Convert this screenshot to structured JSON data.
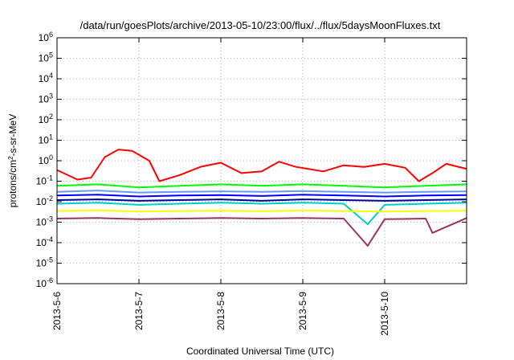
{
  "chart_data": {
    "type": "line",
    "title": "/data/run/goesPlots/archive/2013-05-10/23:00/flux/../flux/5daysMoonFluxes.txt",
    "xlabel": "Coordinated Universal Time (UTC)",
    "ylabel": "protons/cm2-s-sr-MeV",
    "ylabel_base": "protons/cm",
    "ylabel_sup": "2",
    "ylabel_rest": "-s-sr-MeV",
    "yscale": "log",
    "ylim": [
      1e-06,
      1000000.0
    ],
    "xlim": [
      "2013-05-06T00:00",
      "2013-05-11T00:00"
    ],
    "grid": true,
    "legend": "none",
    "x_ticks": [
      "2013-5-6",
      "2013-5-7",
      "2013-5-8",
      "2013-5-9",
      "2013-5-10"
    ],
    "y_tick_exponents": [
      -6,
      -5,
      -4,
      -3,
      -2,
      -1,
      0,
      1,
      2,
      3,
      4,
      5,
      6
    ],
    "series": [
      {
        "color": "#ff0000",
        "x": [
          "2013-05-06T00:00",
          "2013-05-06T06:00",
          "2013-05-06T10:00",
          "2013-05-06T14:00",
          "2013-05-06T18:00",
          "2013-05-06T22:00",
          "2013-05-07T03:00",
          "2013-05-07T06:00",
          "2013-05-07T12:00",
          "2013-05-07T18:00",
          "2013-05-08T00:00",
          "2013-05-08T06:00",
          "2013-05-08T12:00",
          "2013-05-08T17:00",
          "2013-05-08T22:00",
          "2013-05-09T06:00",
          "2013-05-09T12:00",
          "2013-05-09T18:00",
          "2013-05-10T00:00",
          "2013-05-10T06:00",
          "2013-05-10T10:00",
          "2013-05-10T14:00",
          "2013-05-10T18:00",
          "2013-05-11T00:00"
        ],
        "y": [
          0.35,
          0.12,
          0.15,
          1.5,
          3.5,
          3.0,
          1.0,
          0.1,
          0.2,
          0.5,
          0.8,
          0.25,
          0.3,
          0.9,
          0.5,
          0.3,
          0.6,
          0.5,
          0.7,
          0.45,
          0.1,
          0.25,
          0.7,
          0.4
        ]
      },
      {
        "color": "#00ff00",
        "x": [
          "2013-05-06T00:00",
          "2013-05-06T12:00",
          "2013-05-07T00:00",
          "2013-05-07T12:00",
          "2013-05-08T00:00",
          "2013-05-08T12:00",
          "2013-05-09T00:00",
          "2013-05-09T12:00",
          "2013-05-10T00:00",
          "2013-05-10T12:00",
          "2013-05-11T00:00"
        ],
        "y": [
          0.06,
          0.07,
          0.05,
          0.06,
          0.07,
          0.06,
          0.07,
          0.06,
          0.05,
          0.06,
          0.07
        ]
      },
      {
        "color": "#6699ff",
        "x": [
          "2013-05-06T00:00",
          "2013-05-06T12:00",
          "2013-05-07T00:00",
          "2013-05-07T12:00",
          "2013-05-08T00:00",
          "2013-05-08T12:00",
          "2013-05-09T00:00",
          "2013-05-09T12:00",
          "2013-05-10T00:00",
          "2013-05-10T12:00",
          "2013-05-11T00:00"
        ],
        "y": [
          0.03,
          0.035,
          0.028,
          0.03,
          0.032,
          0.03,
          0.033,
          0.03,
          0.028,
          0.03,
          0.032
        ]
      },
      {
        "color": "#0000ff",
        "x": [
          "2013-05-06T00:00",
          "2013-05-06T12:00",
          "2013-05-07T00:00",
          "2013-05-07T12:00",
          "2013-05-08T00:00",
          "2013-05-08T12:00",
          "2013-05-09T00:00",
          "2013-05-09T12:00",
          "2013-05-10T00:00",
          "2013-05-10T12:00",
          "2013-05-11T00:00"
        ],
        "y": [
          0.02,
          0.022,
          0.018,
          0.02,
          0.021,
          0.019,
          0.022,
          0.02,
          0.018,
          0.02,
          0.021
        ]
      },
      {
        "color": "#000099",
        "x": [
          "2013-05-06T00:00",
          "2013-05-06T12:00",
          "2013-05-07T00:00",
          "2013-05-07T12:00",
          "2013-05-08T00:00",
          "2013-05-08T12:00",
          "2013-05-09T00:00",
          "2013-05-09T12:00",
          "2013-05-10T00:00",
          "2013-05-10T12:00",
          "2013-05-11T00:00"
        ],
        "y": [
          0.012,
          0.013,
          0.011,
          0.012,
          0.013,
          0.011,
          0.013,
          0.012,
          0.011,
          0.012,
          0.013
        ]
      },
      {
        "color": "#00cccc",
        "x": [
          "2013-05-06T00:00",
          "2013-05-06T12:00",
          "2013-05-07T00:00",
          "2013-05-07T12:00",
          "2013-05-08T00:00",
          "2013-05-08T12:00",
          "2013-05-09T00:00",
          "2013-05-09T12:00",
          "2013-05-09T19:00",
          "2013-05-10T00:00",
          "2013-05-10T12:00",
          "2013-05-11T00:00"
        ],
        "y": [
          0.008,
          0.009,
          0.007,
          0.008,
          0.009,
          0.008,
          0.009,
          0.008,
          0.0008,
          0.007,
          0.008,
          0.009
        ]
      },
      {
        "color": "#ffff00",
        "x": [
          "2013-05-06T00:00",
          "2013-05-06T12:00",
          "2013-05-07T00:00",
          "2013-05-07T12:00",
          "2013-05-08T00:00",
          "2013-05-08T12:00",
          "2013-05-09T00:00",
          "2013-05-09T12:00",
          "2013-05-10T00:00",
          "2013-05-10T12:00",
          "2013-05-11T00:00"
        ],
        "y": [
          0.0035,
          0.0038,
          0.0033,
          0.0035,
          0.0036,
          0.0034,
          0.0037,
          0.0035,
          0.0033,
          0.0035,
          0.0036
        ]
      },
      {
        "color": "#993366",
        "x": [
          "2013-05-06T00:00",
          "2013-05-06T12:00",
          "2013-05-07T00:00",
          "2013-05-07T12:00",
          "2013-05-08T00:00",
          "2013-05-08T12:00",
          "2013-05-09T00:00",
          "2013-05-09T12:00",
          "2013-05-09T19:00",
          "2013-05-10T00:00",
          "2013-05-10T12:00",
          "2013-05-10T14:00",
          "2013-05-11T00:00"
        ],
        "y": [
          0.0015,
          0.0016,
          0.0014,
          0.0015,
          0.0016,
          0.0015,
          0.0016,
          0.0015,
          7e-05,
          0.0014,
          0.0015,
          0.0003,
          0.0016
        ]
      }
    ]
  }
}
